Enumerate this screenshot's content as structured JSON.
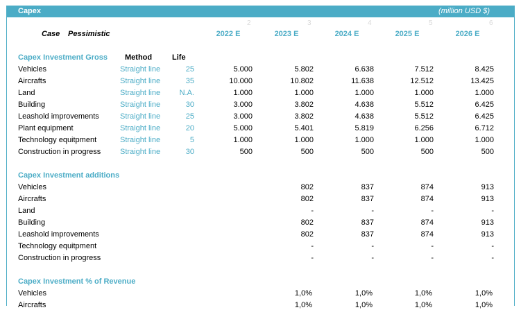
{
  "header": {
    "title": "Capex",
    "units": "(million USD $)"
  },
  "column_index": [
    "2",
    "3",
    "4",
    "5",
    "6"
  ],
  "case": {
    "label": "Case",
    "value": "Pessimistic"
  },
  "years": [
    "2022 E",
    "2023 E",
    "2024 E",
    "2025 E",
    "2026 E"
  ],
  "gross": {
    "title": "Capex Investment Gross",
    "method_header": "Method",
    "life_header": "Life",
    "rows": [
      {
        "label": "Vehicles",
        "method": "Straight line",
        "life": "25",
        "values": [
          "5.000",
          "5.802",
          "6.638",
          "7.512",
          "8.425"
        ]
      },
      {
        "label": "Aircrafts",
        "method": "Straight line",
        "life": "35",
        "values": [
          "10.000",
          "10.802",
          "11.638",
          "12.512",
          "13.425"
        ]
      },
      {
        "label": "Land",
        "method": "Straight line",
        "life": "N.A.",
        "values": [
          "1.000",
          "1.000",
          "1.000",
          "1.000",
          "1.000"
        ]
      },
      {
        "label": "Building",
        "method": "Straight line",
        "life": "30",
        "values": [
          "3.000",
          "3.802",
          "4.638",
          "5.512",
          "6.425"
        ]
      },
      {
        "label": "Leashold improvements",
        "method": "Straight line",
        "life": "25",
        "values": [
          "3.000",
          "3.802",
          "4.638",
          "5.512",
          "6.425"
        ]
      },
      {
        "label": "Plant equipment",
        "method": "Straight line",
        "life": "20",
        "values": [
          "5.000",
          "5.401",
          "5.819",
          "6.256",
          "6.712"
        ]
      },
      {
        "label": "Technology equitpment",
        "method": "Straight line",
        "life": "5",
        "values": [
          "1.000",
          "1.000",
          "1.000",
          "1.000",
          "1.000"
        ]
      },
      {
        "label": "Construction in progress",
        "method": "Straight line",
        "life": "30",
        "values": [
          "500",
          "500",
          "500",
          "500",
          "500"
        ]
      }
    ]
  },
  "additions": {
    "title": "Capex Investment additions",
    "rows": [
      {
        "label": "Vehicles",
        "values": [
          "",
          "802",
          "837",
          "874",
          "913"
        ]
      },
      {
        "label": "Aircrafts",
        "values": [
          "",
          "802",
          "837",
          "874",
          "913"
        ]
      },
      {
        "label": "Land",
        "values": [
          "",
          "-",
          "-",
          "-",
          "-"
        ]
      },
      {
        "label": "Building",
        "values": [
          "",
          "802",
          "837",
          "874",
          "913"
        ]
      },
      {
        "label": "Leashold improvements",
        "values": [
          "",
          "802",
          "837",
          "874",
          "913"
        ]
      },
      {
        "label": "Technology equitpment",
        "values": [
          "",
          "-",
          "-",
          "-",
          "-"
        ]
      },
      {
        "label": "Construction in progress",
        "values": [
          "",
          "-",
          "-",
          "-",
          "-"
        ]
      }
    ]
  },
  "pct": {
    "title": "Capex Investment % of Revenue",
    "rows": [
      {
        "label": "Vehicles",
        "values": [
          "",
          "1,0%",
          "1,0%",
          "1,0%",
          "1,0%"
        ]
      },
      {
        "label": "Aircrafts",
        "values": [
          "",
          "1,0%",
          "1,0%",
          "1,0%",
          "1,0%"
        ]
      }
    ]
  }
}
